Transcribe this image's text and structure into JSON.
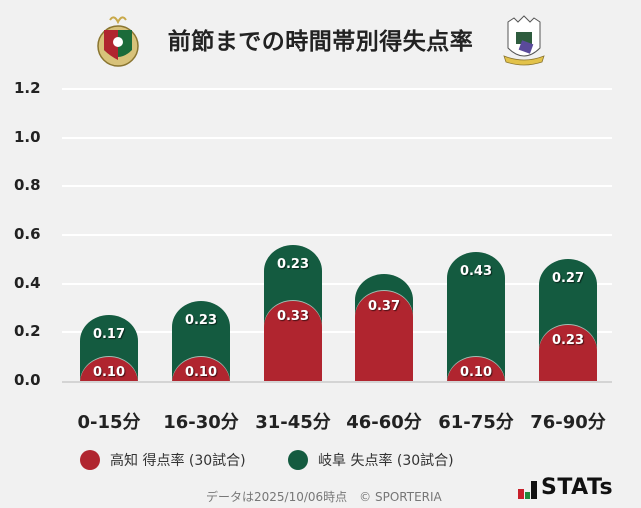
{
  "header": {
    "title": "前節までの時間帯別得失点率",
    "left_logo": "kochi-united-crest",
    "right_logo": "fc-gifu-crest"
  },
  "colors": {
    "kochi": "#B0252F",
    "gifu": "#145B40",
    "background": "#F1F1F1"
  },
  "chart_data": {
    "type": "bar",
    "stacked": true,
    "title": "前節までの時間帯別得失点率",
    "xlabel": "",
    "ylabel": "",
    "ylim": [
      0,
      1.2
    ],
    "yticks": [
      "1.2",
      "1.0",
      "0.8",
      "0.6",
      "0.4",
      "0.2",
      "0.0"
    ],
    "grid": true,
    "legend_position": "bottom",
    "categories": [
      "0-15分",
      "16-30分",
      "31-45分",
      "46-60分",
      "61-75分",
      "76-90分"
    ],
    "series": [
      {
        "name": "高知 得点率 (30試合)",
        "color": "#B0252F",
        "values": [
          0.1,
          0.1,
          0.33,
          0.37,
          0.1,
          0.23
        ],
        "labels": [
          "0.10",
          "0.10",
          "0.33",
          "0.37",
          "0.10",
          "0.23"
        ]
      },
      {
        "name": "岐阜 失点率 (30試合)",
        "color": "#145B40",
        "values": [
          0.17,
          0.23,
          0.23,
          0.07,
          0.43,
          0.27
        ],
        "labels": [
          "0.17",
          "0.23",
          "0.23",
          "",
          "0.43",
          "0.27"
        ]
      }
    ]
  },
  "legend": [
    {
      "label": "高知 得点率 (30試合)"
    },
    {
      "label": "岐阜 失点率 (30試合)"
    }
  ],
  "footer": {
    "note": "データは2025/10/06時点　© SPORTERIA",
    "brand": "STATs"
  }
}
